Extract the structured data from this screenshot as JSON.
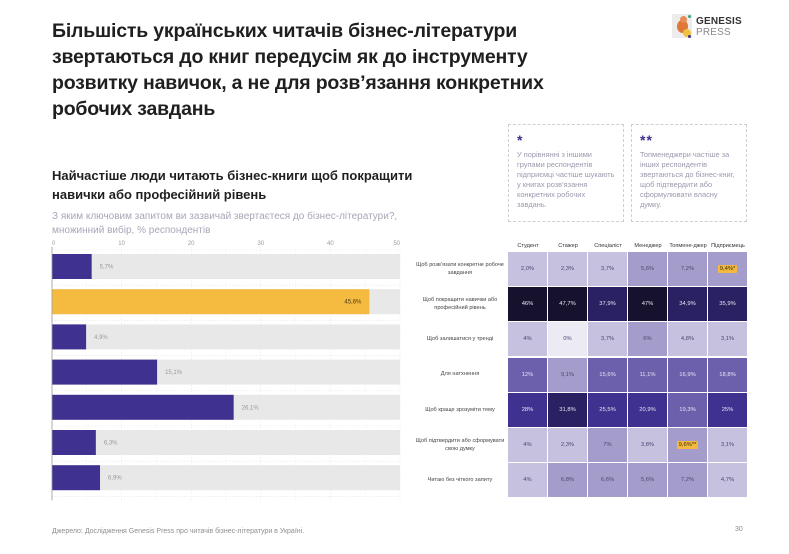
{
  "header": {
    "title": "Більшість українських читачів бізнес-літератури звертаються до книг передусім як до інструменту розвитку навичок, а не для розв’язання конкретних робочих завдань",
    "logo": {
      "name": "GENESIS",
      "sub": "PRESS"
    }
  },
  "left_panel": {
    "title": "Найчастіше люди читають бізнес-книги щоб покращити навички або професійний рівень",
    "subtitle": "З яким ключовим запитом ви зазвичай звертаєтеся до бізнес-літератури?, множинний вибір, % респондентів"
  },
  "notes": [
    {
      "marker": "*",
      "text": "У порівнянні з іншими групами респондентів підприємці частіше шукають у книгах розв’язання конкретних робочих завдань."
    },
    {
      "marker": "**",
      "text": "Топменеджери частіше за інших респондентів звертаються до бізнес-книг, щоб підтвердити або сформулювати власну думку."
    }
  ],
  "colors": {
    "bar_primary": "#3f318f",
    "bar_highlight": "#f4bb40",
    "track": "#e8e8e8",
    "heat_scale": [
      "#ecebf3",
      "#c6c1df",
      "#a49dcb",
      "#6c5fac",
      "#3f318f",
      "#2a2163",
      "#16122e"
    ]
  },
  "chart_data": [
    {
      "type": "bar",
      "orientation": "horizontal",
      "title": "Найчастіше люди читають бізнес-книги щоб покращити навички або професійний рівень",
      "subtitle": "З яким ключовим запитом ви зазвичай звертаєтеся до бізнес-літератури?, множинний вибір, % респондентів",
      "categories": [
        "Щоб розв’язати конкретне робоче завдання",
        "Щоб покращити навички або професійний рівень",
        "Щоб залишатися у тренді",
        "Для натхнення",
        "Щоб краще зрозуміти тему",
        "Щоб підтвердити або сформувати свою думку",
        "Читаю без чіткого запиту"
      ],
      "values": [
        5.7,
        45.6,
        4.9,
        15.1,
        26.1,
        6.3,
        6.9
      ],
      "value_labels": [
        "5,7%",
        "45,6%",
        "4,9%",
        "15,1%",
        "26,1%",
        "6,3%",
        "6,9%"
      ],
      "highlight_index": 1,
      "xlim": [
        0,
        50
      ],
      "xticks": [
        0,
        10,
        20,
        30,
        40,
        50
      ],
      "grid": true,
      "xlabel": "",
      "ylabel": ""
    },
    {
      "type": "heatmap",
      "columns": [
        "Студент",
        "Стажер",
        "Спеціаліст",
        "Менеджер",
        "Топмене-джер",
        "Підприємець"
      ],
      "rows": [
        "Щоб розв’язати конкретне робоче завдання",
        "Щоб покращити навички або професійний рівень",
        "Щоб залишатися у тренді",
        "Для натхнення",
        "Щоб краще зрозуміти тему",
        "Щоб підтвердити або сформувати свою думку",
        "Читаю без чіткого запиту"
      ],
      "values": [
        [
          2.0,
          2.3,
          3.7,
          5.6,
          7.2,
          9.4
        ],
        [
          46,
          47.7,
          37.9,
          47,
          34.9,
          35.9
        ],
        [
          4,
          0,
          3.7,
          6,
          4.8,
          3.1
        ],
        [
          12,
          9.1,
          15.6,
          11.1,
          16.9,
          18.8
        ],
        [
          28,
          31.8,
          25.5,
          20.9,
          19.3,
          25
        ],
        [
          4,
          2.3,
          7,
          3.8,
          9.6,
          3.1
        ],
        [
          4,
          6.8,
          6.6,
          5.6,
          7.2,
          4.7
        ]
      ],
      "labels": [
        [
          "2,0%",
          "2,3%",
          "3,7%",
          "5,6%",
          "7,2%",
          "9,4%*"
        ],
        [
          "46%",
          "47,7%",
          "37,9%",
          "47%",
          "34,9%",
          "35,9%"
        ],
        [
          "4%",
          "0%",
          "3,7%",
          "6%",
          "4,8%",
          "3,1%"
        ],
        [
          "12%",
          "9,1%",
          "15,6%",
          "11,1%",
          "16,9%",
          "18,8%"
        ],
        [
          "28%",
          "31,8%",
          "25,5%",
          "20,9%",
          "19,3%",
          "25%"
        ],
        [
          "4%",
          "2,3%",
          "7%",
          "3,8%",
          "9,6%**",
          "3,1%"
        ],
        [
          "4%",
          "6,8%",
          "6,6%",
          "5,6%",
          "7,2%",
          "4,7%"
        ]
      ],
      "highlighted_cells": [
        [
          0,
          5
        ],
        [
          5,
          4
        ]
      ]
    }
  ],
  "footer": {
    "source": "Джерело: Дослідження Genesis Press про читачів бізнес-літератури в Україні.",
    "page": "30"
  }
}
